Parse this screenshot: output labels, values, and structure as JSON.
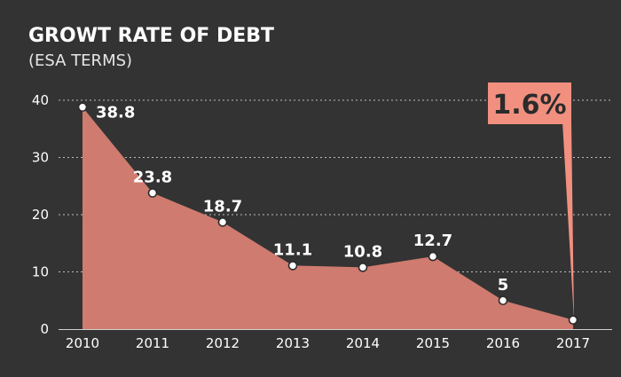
{
  "colors": {
    "background": "#333333",
    "area_fill": "#cf7b6f",
    "callout": "#f29080",
    "grid": "#bdbdbd",
    "text": "#ffffff"
  },
  "chart_data": {
    "type": "area",
    "title": "GROWT RATE OF DEBT",
    "subtitle": "(ESA TERMS)",
    "xlabel": "",
    "ylabel": "",
    "x": [
      "2010",
      "2011",
      "2012",
      "2013",
      "2014",
      "2015",
      "2016",
      "2017"
    ],
    "values": [
      38.8,
      23.8,
      18.7,
      11.1,
      10.8,
      12.7,
      5,
      1.6
    ],
    "data_labels": [
      "38.8",
      "23.8",
      "18.7",
      "11.1",
      "10.8",
      "12.7",
      "5",
      ""
    ],
    "ylim": [
      0,
      40
    ],
    "yticks": [
      0,
      10,
      20,
      30,
      40
    ],
    "grid": true,
    "grid_style": "dotted",
    "highlight": {
      "index": 7,
      "label": "1.6%"
    }
  }
}
